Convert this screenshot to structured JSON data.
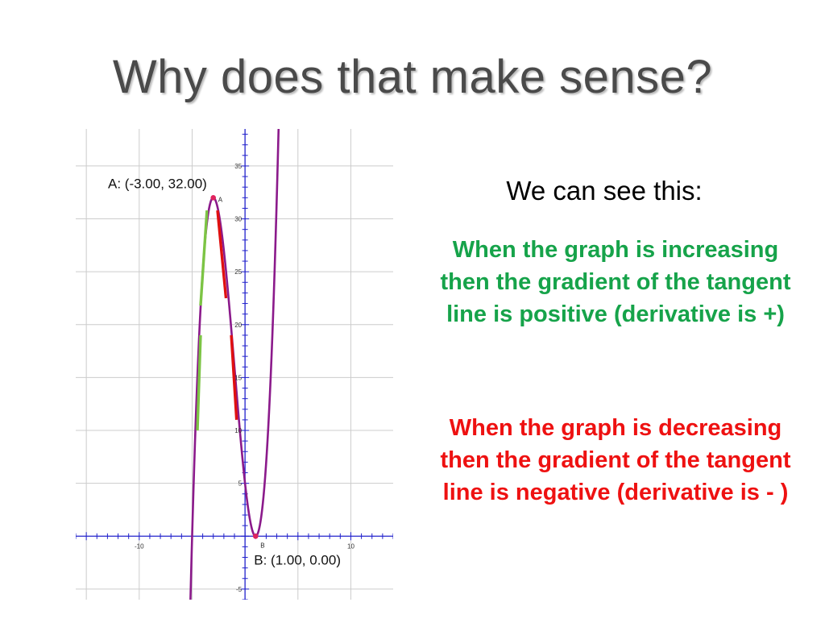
{
  "title": "Why does that make sense?",
  "intro": "We can see this:",
  "increasing_statement": "When the graph is increasing then the gradient of the tangent line is positive (derivative is +)",
  "decreasing_statement": "When the graph is decreasing then the gradient of the tangent line is negative (derivative is - )",
  "colors": {
    "title": "#4a4a4a",
    "curve": "#8b1a8b",
    "axes": "#2222cc",
    "grid": "#cccccc",
    "increasing": "#16a34a",
    "decreasing": "#ee1111",
    "tangent_increasing": "#7cc444",
    "tangent_decreasing": "#e01010",
    "point": "#e0245e"
  },
  "chart_data": {
    "type": "line",
    "function": "y = x^3 + 3x^2 - 9x + 5",
    "xlim": [
      -16,
      14
    ],
    "ylim": [
      -6,
      38.5
    ],
    "grid": true,
    "x_ticks": [
      -10,
      10
    ],
    "y_ticks": [
      -5,
      5,
      10,
      15,
      20,
      25,
      30,
      35
    ],
    "points": [
      {
        "name": "A",
        "x": -3,
        "y": 32,
        "label": "A: (-3.00, 32.00)"
      },
      {
        "name": "B",
        "x": 1,
        "y": 0,
        "label": "B: (1.00, 0.00)"
      }
    ],
    "tangent_segments": [
      {
        "kind": "increasing",
        "from": [
          -4.5,
          10
        ],
        "to": [
          -4.2,
          19
        ]
      },
      {
        "kind": "increasing",
        "from": [
          -4.2,
          21.8
        ],
        "to": [
          -3.6,
          30.8
        ]
      },
      {
        "kind": "decreasing",
        "from": [
          -2.6,
          30.8
        ],
        "to": [
          -1.8,
          22.5
        ]
      },
      {
        "kind": "decreasing",
        "from": [
          -1.3,
          19
        ],
        "to": [
          -0.8,
          11
        ]
      }
    ]
  }
}
